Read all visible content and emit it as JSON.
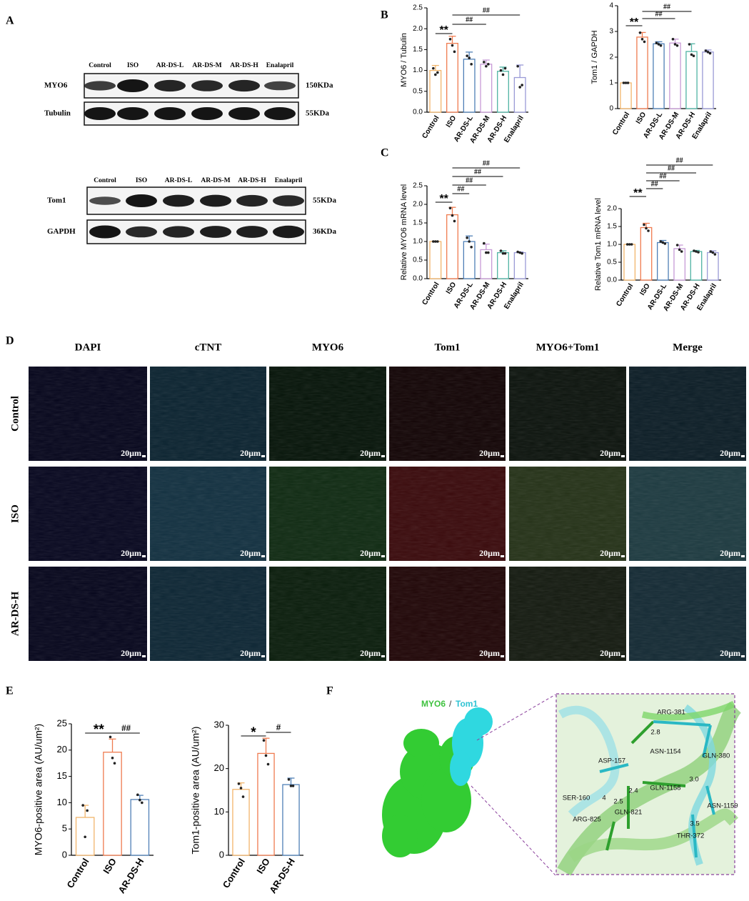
{
  "letters": [
    "A",
    "B",
    "C",
    "D",
    "E",
    "F"
  ],
  "blots": [
    {
      "lanes": [
        "Control",
        "ISO",
        "AR-DS-L",
        "AR-DS-M",
        "AR-DS-H",
        "Enalapril"
      ],
      "rows": [
        {
          "protein": "MYO6",
          "size": "150KDa"
        },
        {
          "protein": "Tubulin",
          "size": "55KDa"
        }
      ]
    },
    {
      "lanes": [
        "Control",
        "ISO",
        "AR-DS-L",
        "AR-DS-M",
        "AR-DS-H",
        "Enalapril"
      ],
      "rows": [
        {
          "protein": "Tom1",
          "size": "55KDa"
        },
        {
          "protein": "GAPDH",
          "size": "36KDa"
        }
      ]
    }
  ],
  "chart_data": [
    {
      "type": "bar",
      "ylabel": "MYO6 / Tubulin",
      "categories": [
        "Control",
        "ISO",
        "AR-DS-L",
        "AR-DS-M",
        "AR-DS-H",
        "Enalapril"
      ],
      "colors": [
        "#f2b56b",
        "#ef7b4f",
        "#4f7fb6",
        "#c79ad6",
        "#4fb3a3",
        "#9a9ad6"
      ],
      "values": [
        1.0,
        1.65,
        1.27,
        1.15,
        0.98,
        0.83
      ],
      "errors": [
        0.12,
        0.17,
        0.17,
        0.1,
        0.1,
        0.3
      ],
      "points": [
        [
          1.05,
          0.9,
          0.95
        ],
        [
          1.75,
          1.6,
          1.45
        ],
        [
          1.35,
          1.3,
          1.15
        ],
        [
          1.2,
          1.1,
          1.15
        ],
        [
          1.0,
          0.9,
          1.05
        ],
        [
          1.1,
          0.6,
          0.65
        ]
      ],
      "ylim": [
        0,
        2.5
      ],
      "yticks": [
        {
          "value": 0,
          "label": "0.0"
        },
        0.5,
        {
          "value": 1,
          "label": "1.0"
        },
        1.5,
        {
          "value": 2,
          "label": "2.0"
        },
        2.5
      ],
      "annotations": [
        {
          "text": "**",
          "from": "Control",
          "to": "ISO"
        },
        {
          "text": "##",
          "from": "ISO",
          "to": "AR-DS-M"
        },
        {
          "text": "##",
          "from": "ISO",
          "to": "Enalapril"
        }
      ]
    },
    {
      "type": "bar",
      "ylabel": "Tom1 / GAPDH",
      "categories": [
        "Control",
        "ISO",
        "AR-DS-L",
        "AR-DS-M",
        "AR-DS-H",
        "Enalapril"
      ],
      "colors": [
        "#f2b56b",
        "#ef7b4f",
        "#4f7fb6",
        "#c79ad6",
        "#4fb3a3",
        "#9a9ad6"
      ],
      "values": [
        1.0,
        2.78,
        2.52,
        2.55,
        2.22,
        2.2
      ],
      "errors": [
        0.02,
        0.18,
        0.08,
        0.15,
        0.3,
        0.08
      ],
      "points": [
        [
          1.0,
          1.0,
          1.0
        ],
        [
          2.95,
          2.7,
          2.6
        ],
        [
          2.55,
          2.5,
          2.45
        ],
        [
          2.7,
          2.5,
          2.45
        ],
        [
          2.5,
          2.1,
          2.05
        ],
        [
          2.25,
          2.2,
          2.15
        ]
      ],
      "ylim": [
        0,
        4
      ],
      "yticks": [
        0,
        1,
        2,
        3,
        4
      ],
      "annotations": [
        {
          "text": "**",
          "from": "Control",
          "to": "ISO"
        },
        {
          "text": "##",
          "from": "ISO",
          "to": "AR-DS-M"
        },
        {
          "text": "##",
          "from": "ISO",
          "to": "AR-DS-H"
        }
      ]
    },
    {
      "type": "bar",
      "ylabel": "Relative MYO6 mRNA level",
      "categories": [
        "Control",
        "ISO",
        "AR-DS-L",
        "AR-DS-M",
        "AR-DS-H",
        "Enalapril"
      ],
      "colors": [
        "#f2b56b",
        "#ef7b4f",
        "#4f7fb6",
        "#c79ad6",
        "#4fb3a3",
        "#9a9ad6"
      ],
      "values": [
        1.0,
        1.72,
        1.0,
        0.78,
        0.7,
        0.7
      ],
      "errors": [
        0.01,
        0.2,
        0.15,
        0.15,
        0.05,
        0.02
      ],
      "points": [
        [
          1.0,
          1.0,
          1.0
        ],
        [
          1.9,
          1.7,
          1.55
        ],
        [
          1.1,
          1.0,
          0.85
        ],
        [
          0.95,
          0.7,
          0.7
        ],
        [
          0.75,
          0.68,
          0.68
        ],
        [
          0.72,
          0.7,
          0.68
        ]
      ],
      "ylim": [
        0,
        2.5
      ],
      "yticks": [
        {
          "value": 0,
          "label": "0.0"
        },
        0.5,
        {
          "value": 1,
          "label": "1.0"
        },
        1.5,
        {
          "value": 2,
          "label": "2.0"
        },
        2.5
      ],
      "annotations": [
        {
          "text": "**",
          "from": "Control",
          "to": "ISO"
        },
        {
          "text": "##",
          "from": "ISO",
          "to": "AR-DS-L"
        },
        {
          "text": "##",
          "from": "ISO",
          "to": "AR-DS-M"
        },
        {
          "text": "##",
          "from": "ISO",
          "to": "AR-DS-H"
        },
        {
          "text": "##",
          "from": "ISO",
          "to": "Enalapril"
        }
      ]
    },
    {
      "type": "bar",
      "ylabel": "Relative Tom1 mRNA level",
      "categories": [
        "Control",
        "ISO",
        "AR-DS-L",
        "AR-DS-M",
        "AR-DS-H",
        "Enalapril"
      ],
      "colors": [
        "#f2b56b",
        "#ef7b4f",
        "#4f7fb6",
        "#c79ad6",
        "#4fb3a3",
        "#9a9ad6"
      ],
      "values": [
        1.0,
        1.47,
        1.05,
        0.88,
        0.8,
        0.77
      ],
      "errors": [
        0.01,
        0.12,
        0.06,
        0.1,
        0.03,
        0.05
      ],
      "points": [
        [
          1.0,
          1.0,
          1.0
        ],
        [
          1.55,
          1.45,
          1.38
        ],
        [
          1.08,
          1.05,
          1.02
        ],
        [
          0.98,
          0.85,
          0.8
        ],
        [
          0.82,
          0.8,
          0.78
        ],
        [
          0.8,
          0.77,
          0.72
        ]
      ],
      "ylim": [
        0,
        2
      ],
      "yticks": [
        {
          "value": 0,
          "label": "0.0"
        },
        0.5,
        {
          "value": 1,
          "label": "1.0"
        },
        1.5,
        {
          "value": 2,
          "label": "2.0"
        }
      ],
      "annotations": [
        {
          "text": "**",
          "from": "Control",
          "to": "ISO"
        },
        {
          "text": "##",
          "from": "ISO",
          "to": "AR-DS-L"
        },
        {
          "text": "##",
          "from": "ISO",
          "to": "AR-DS-M"
        },
        {
          "text": "##",
          "from": "ISO",
          "to": "AR-DS-H"
        },
        {
          "text": "##",
          "from": "ISO",
          "to": "Enalapril"
        }
      ]
    },
    {
      "type": "bar",
      "ylabel": "MYO6-positive area (AU/um²)",
      "categories": [
        "Control",
        "ISO",
        "AR-DS-H"
      ],
      "colors": [
        "#f2b56b",
        "#ef7b4f",
        "#4f7fb6"
      ],
      "values": [
        7.2,
        19.6,
        10.6
      ],
      "errors": [
        2.3,
        2.5,
        0.8
      ],
      "points": [
        [
          9.5,
          3.5,
          8.5
        ],
        [
          22.5,
          18.5,
          17.5
        ],
        [
          11.5,
          10.5,
          10
        ]
      ],
      "ylim": [
        0,
        25
      ],
      "yticks": [
        0,
        5,
        10,
        15,
        20,
        25
      ],
      "annotations": [
        {
          "text": "**",
          "from": "Control",
          "to": "ISO"
        },
        {
          "text": "##",
          "from": "ISO",
          "to": "AR-DS-H"
        }
      ]
    },
    {
      "type": "bar",
      "ylabel": "Tom1-positive area (AU/um²)",
      "categories": [
        "Control",
        "ISO",
        "AR-DS-H"
      ],
      "colors": [
        "#f2b56b",
        "#ef7b4f",
        "#4f7fb6"
      ],
      "values": [
        15.2,
        23.5,
        16.3
      ],
      "errors": [
        1.5,
        3.5,
        1.5
      ],
      "points": [
        [
          16.5,
          15.5,
          13.5
        ],
        [
          26.5,
          23,
          21
        ],
        [
          17.5,
          16,
          16
        ]
      ],
      "ylim": [
        0,
        30
      ],
      "yticks": [
        0,
        10,
        20,
        30
      ],
      "annotations": [
        {
          "text": "*",
          "from": "Control",
          "to": "ISO"
        },
        {
          "text": "#",
          "from": "ISO",
          "to": "AR-DS-H"
        }
      ]
    }
  ],
  "imaging": {
    "channels": [
      "DAPI",
      "cTNT",
      "MYO6",
      "Tom1",
      "MYO6+Tom1",
      "Merge"
    ],
    "groups": [
      "Control",
      "ISO",
      "AR-DS-H"
    ],
    "scale_bar": "20µm"
  },
  "docking": {
    "proteins": [
      "MYO6",
      "Tom1"
    ],
    "separator": "/",
    "labels": [
      "ARG-381",
      "2.8",
      "ASN-1154",
      "GLN-380",
      "3.0",
      "ASP-157",
      "2.4",
      "SER-160",
      "4",
      "2.5",
      "GLN-1158",
      "GLN-821",
      "ARG-825",
      "ASN-1159",
      "3.5",
      "THR-372"
    ]
  }
}
